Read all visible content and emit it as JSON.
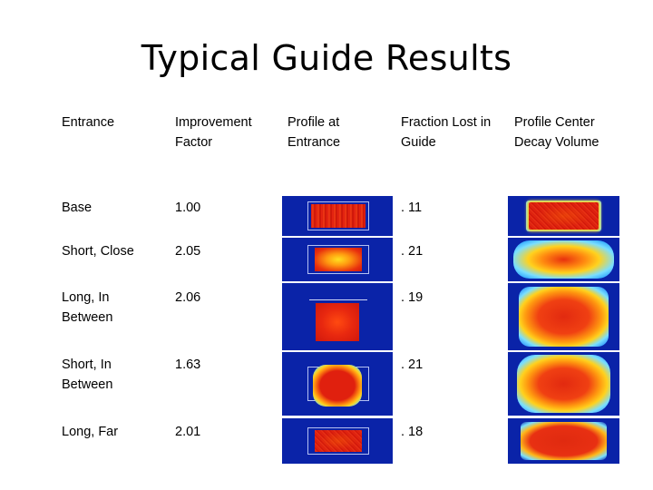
{
  "title": "Typical Guide Results",
  "headers": [
    "Entrance",
    "Improvement Factor",
    "Profile at Entrance",
    "Fraction Lost in Guide",
    "Profile Center Decay Volume"
  ],
  "rows": [
    {
      "entrance": "Base",
      "factor": "1.00",
      "lost": ". 11"
    },
    {
      "entrance": "Short, Close",
      "factor": "2.05",
      "lost": ". 21"
    },
    {
      "entrance": "Long, In Between",
      "factor": "2.06",
      "lost": ". 19"
    },
    {
      "entrance": "Short, In Between",
      "factor": "1.63",
      "lost": ". 21"
    },
    {
      "entrance": "Long, Far",
      "factor": "2.01",
      "lost": ". 18"
    }
  ],
  "colors": {
    "background_blue": "#0a23a8",
    "hot": "#d81a10",
    "warm": "#ffd21e",
    "cool": "#32c8ff"
  }
}
